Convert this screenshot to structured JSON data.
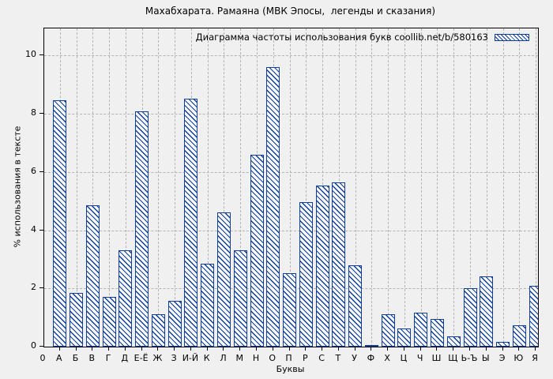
{
  "title": "Махабхарата. Рамаяна (МВК Эпосы,  легенды и сказания)",
  "legend": {
    "label": "Диаграмма частоты использования букв coollib.net/b/580163"
  },
  "colors": {
    "bar": "#0d3d9d",
    "background": "#f0f0f0",
    "grid": "#b4b4b4",
    "bar_fill": "#fbfbfb"
  },
  "chart_data": {
    "type": "bar",
    "title": "Махабхарата. Рамаяна (МВК Эпосы,  легенды и сказания)",
    "legend_entry": "Диаграмма частоты использования букв coollib.net/b/580163",
    "xlabel": "Буквы",
    "ylabel": "% использования в тексте",
    "ylim": [
      0,
      10.93
    ],
    "yticks": [
      0,
      2,
      4,
      6,
      8,
      10
    ],
    "grid": "dashed, vertical line at every category and horizontal line at every ytick",
    "bar_style": "white fill with blue diagonal \\ hatching and blue outline",
    "legend_position": "top-right inside plot",
    "categories": [
      "0",
      "А",
      "Б",
      "В",
      "Г",
      "Д",
      "Е-Ё",
      "Ж",
      "З",
      "И-Й",
      "К",
      "Л",
      "М",
      "Н",
      "О",
      "П",
      "Р",
      "С",
      "Т",
      "У",
      "Ф",
      "Х",
      "Ц",
      "Ч",
      "Ш",
      "Щ",
      "Ь-Ъ",
      "Ы",
      "Э",
      "Ю",
      "Я"
    ],
    "values": [
      0,
      8.45,
      1.85,
      4.85,
      1.7,
      3.3,
      8.08,
      1.12,
      1.57,
      8.53,
      2.86,
      4.6,
      3.3,
      6.6,
      9.6,
      2.52,
      4.97,
      5.53,
      5.63,
      2.8,
      0.05,
      1.1,
      0.62,
      1.16,
      0.96,
      0.35,
      2.02,
      2.42,
      0.15,
      0.72,
      2.1
    ]
  }
}
